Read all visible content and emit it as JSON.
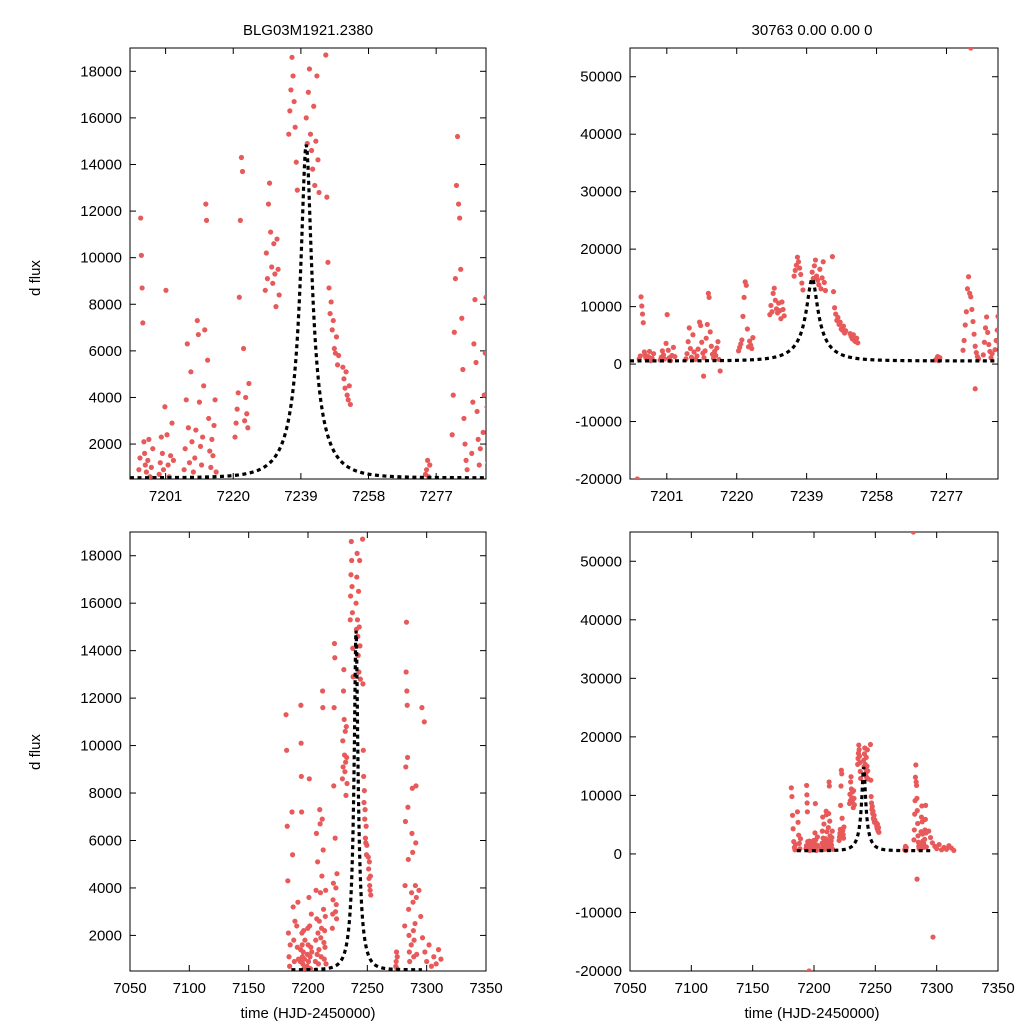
{
  "figure": {
    "title_left": "BLG03M1921.2380",
    "title_right": "30763  0.00  0.00  0",
    "ylabel": "d flux",
    "xlabel": "time (HJD-2450000)",
    "point_color": "#e8595a",
    "curve_color": "#000000"
  },
  "model": {
    "t0": 7240.5,
    "tE": 8.5,
    "amplitude": 14300,
    "baseline": 550
  },
  "chart_data": [
    {
      "type": "scatter",
      "panel": "top-left",
      "title": "BLG03M1921.2380",
      "xlabel": "",
      "ylabel": "d flux",
      "xlim": [
        7191,
        7291
      ],
      "ylim": [
        500,
        19000
      ],
      "xticks": [
        7201,
        7220,
        7239,
        7258,
        7277
      ],
      "yticks": [
        2000,
        4000,
        6000,
        8000,
        10000,
        12000,
        14000,
        16000,
        18000
      ],
      "series": [
        {
          "name": "observations",
          "kind": "points"
        },
        {
          "name": "model",
          "kind": "dashed-line"
        }
      ]
    },
    {
      "type": "scatter",
      "panel": "top-right",
      "title": "30763  0.00  0.00  0",
      "xlabel": "",
      "ylabel": "",
      "xlim": [
        7191,
        7291
      ],
      "ylim": [
        -20000,
        55000
      ],
      "xticks": [
        7201,
        7220,
        7239,
        7258,
        7277
      ],
      "yticks": [
        -20000,
        -10000,
        0,
        10000,
        20000,
        30000,
        40000,
        50000
      ],
      "series": [
        {
          "name": "observations",
          "kind": "points"
        },
        {
          "name": "model",
          "kind": "dashed-line"
        }
      ]
    },
    {
      "type": "scatter",
      "panel": "bottom-left",
      "title": "",
      "xlabel": "time (HJD-2450000)",
      "ylabel": "d flux",
      "xlim": [
        7050,
        7350
      ],
      "ylim": [
        500,
        19000
      ],
      "xticks": [
        7050,
        7100,
        7150,
        7200,
        7250,
        7300,
        7350
      ],
      "yticks": [
        2000,
        4000,
        6000,
        8000,
        10000,
        12000,
        14000,
        16000,
        18000
      ],
      "series": [
        {
          "name": "observations",
          "kind": "points"
        },
        {
          "name": "model",
          "kind": "dashed-line"
        }
      ]
    },
    {
      "type": "scatter",
      "panel": "bottom-right",
      "title": "",
      "xlabel": "time (HJD-2450000)",
      "ylabel": "",
      "xlim": [
        7050,
        7350
      ],
      "ylim": [
        -20000,
        55000
      ],
      "xticks": [
        7050,
        7100,
        7150,
        7200,
        7250,
        7300,
        7350
      ],
      "yticks": [
        -20000,
        -10000,
        0,
        10000,
        20000,
        30000,
        40000,
        50000
      ],
      "series": [
        {
          "name": "observations",
          "kind": "points"
        },
        {
          "name": "model",
          "kind": "dashed-line"
        }
      ]
    }
  ],
  "observations": [
    [
      7193.5,
      900
    ],
    [
      7193.8,
      1400
    ],
    [
      7194.0,
      11700
    ],
    [
      7194.2,
      10100
    ],
    [
      7194.4,
      8700
    ],
    [
      7194.6,
      7200
    ],
    [
      7194.9,
      2100
    ],
    [
      7195.1,
      1600
    ],
    [
      7195.3,
      1100
    ],
    [
      7195.6,
      800
    ],
    [
      7196.0,
      1300
    ],
    [
      7196.3,
      2200
    ],
    [
      7196.6,
      600
    ],
    [
      7197.0,
      1000
    ],
    [
      7197.4,
      1800
    ],
    [
      7199.2,
      700
    ],
    [
      7199.5,
      1200
    ],
    [
      7199.8,
      2300
    ],
    [
      7200.1,
      1600
    ],
    [
      7200.4,
      900
    ],
    [
      7200.8,
      3600
    ],
    [
      7201.1,
      8600
    ],
    [
      7201.4,
      2400
    ],
    [
      7201.7,
      1100
    ],
    [
      7202.0,
      600
    ],
    [
      7202.4,
      1500
    ],
    [
      7202.8,
      2900
    ],
    [
      7203.2,
      1300
    ],
    [
      7206.2,
      900
    ],
    [
      7206.5,
      1800
    ],
    [
      7206.8,
      3900
    ],
    [
      7207.1,
      6300
    ],
    [
      7207.4,
      2700
    ],
    [
      7207.7,
      1200
    ],
    [
      7208.1,
      5100
    ],
    [
      7208.4,
      2100
    ],
    [
      7208.8,
      800
    ],
    [
      7209.2,
      1400
    ],
    [
      7209.5,
      2600
    ],
    [
      7209.9,
      7300
    ],
    [
      7210.2,
      6700
    ],
    [
      7210.5,
      3800
    ],
    [
      7210.8,
      1900
    ],
    [
      7211.1,
      1100
    ],
    [
      7211.4,
      2300
    ],
    [
      7211.7,
      4500
    ],
    [
      7212.0,
      6900
    ],
    [
      7212.3,
      12300
    ],
    [
      7212.5,
      11600
    ],
    [
      7212.8,
      5600
    ],
    [
      7213.1,
      3100
    ],
    [
      7213.4,
      1700
    ],
    [
      7213.7,
      1000
    ],
    [
      7214.0,
      2200
    ],
    [
      7214.3,
      1500
    ],
    [
      7214.6,
      2800
    ],
    [
      7214.9,
      3900
    ],
    [
      7215.2,
      800
    ],
    [
      7220.5,
      2300
    ],
    [
      7220.8,
      2900
    ],
    [
      7221.1,
      3500
    ],
    [
      7221.4,
      4200
    ],
    [
      7221.7,
      8300
    ],
    [
      7222.0,
      11600
    ],
    [
      7222.3,
      14300
    ],
    [
      7222.6,
      13700
    ],
    [
      7222.9,
      6100
    ],
    [
      7223.2,
      3000
    ],
    [
      7223.5,
      4000
    ],
    [
      7223.8,
      3300
    ],
    [
      7224.1,
      2700
    ],
    [
      7224.4,
      4600
    ],
    [
      7229.0,
      8600
    ],
    [
      7229.3,
      10200
    ],
    [
      7229.6,
      9100
    ],
    [
      7229.9,
      12300
    ],
    [
      7230.2,
      13200
    ],
    [
      7230.5,
      11100
    ],
    [
      7230.8,
      9600
    ],
    [
      7231.1,
      8900
    ],
    [
      7231.4,
      10600
    ],
    [
      7231.7,
      9300
    ],
    [
      7232.0,
      7900
    ],
    [
      7232.3,
      10800
    ],
    [
      7232.6,
      9500
    ],
    [
      7232.9,
      8400
    ],
    [
      7235.6,
      15300
    ],
    [
      7235.9,
      16300
    ],
    [
      7236.2,
      17200
    ],
    [
      7236.5,
      18600
    ],
    [
      7236.8,
      17800
    ],
    [
      7237.1,
      16700
    ],
    [
      7237.4,
      15600
    ],
    [
      7237.7,
      14100
    ],
    [
      7238.0,
      12900
    ],
    [
      7240.5,
      16000
    ],
    [
      7240.8,
      14900
    ],
    [
      7241.1,
      17100
    ],
    [
      7241.4,
      18100
    ],
    [
      7241.7,
      15300
    ],
    [
      7242.0,
      14600
    ],
    [
      7242.3,
      13800
    ],
    [
      7242.6,
      16500
    ],
    [
      7242.9,
      13100
    ],
    [
      7243.2,
      15000
    ],
    [
      7243.5,
      17800
    ],
    [
      7243.8,
      14200
    ],
    [
      7244.1,
      12800
    ],
    [
      7246.0,
      18700
    ],
    [
      7246.3,
      12600
    ],
    [
      7246.6,
      9800
    ],
    [
      7246.9,
      8700
    ],
    [
      7247.2,
      7600
    ],
    [
      7247.5,
      8100
    ],
    [
      7247.8,
      6900
    ],
    [
      7248.1,
      7300
    ],
    [
      7248.4,
      6100
    ],
    [
      7248.7,
      5900
    ],
    [
      7249.0,
      6600
    ],
    [
      7249.3,
      5400
    ],
    [
      7249.6,
      5800
    ],
    [
      7250.8,
      5300
    ],
    [
      7251.1,
      4800
    ],
    [
      7251.4,
      4400
    ],
    [
      7251.7,
      5100
    ],
    [
      7252.0,
      4100
    ],
    [
      7252.3,
      3900
    ],
    [
      7252.6,
      4500
    ],
    [
      7252.9,
      3700
    ],
    [
      7274.0,
      700
    ],
    [
      7274.3,
      900
    ],
    [
      7274.6,
      1300
    ],
    [
      7274.9,
      600
    ],
    [
      7275.2,
      1100
    ],
    [
      7281.5,
      2400
    ],
    [
      7281.8,
      4100
    ],
    [
      7282.1,
      6800
    ],
    [
      7282.4,
      9100
    ],
    [
      7282.7,
      13100
    ],
    [
      7283.0,
      15200
    ],
    [
      7283.3,
      12300
    ],
    [
      7283.6,
      11700
    ],
    [
      7283.9,
      9500
    ],
    [
      7284.2,
      7400
    ],
    [
      7284.5,
      5200
    ],
    [
      7284.8,
      3100
    ],
    [
      7285.1,
      2000
    ],
    [
      7285.4,
      1300
    ],
    [
      7285.7,
      900
    ],
    [
      7287.0,
      1600
    ],
    [
      7287.3,
      3800
    ],
    [
      7287.6,
      6300
    ],
    [
      7287.9,
      8200
    ],
    [
      7288.2,
      5500
    ],
    [
      7288.5,
      3400
    ],
    [
      7288.8,
      2200
    ],
    [
      7289.1,
      1100
    ],
    [
      7289.4,
      1800
    ],
    [
      7290.2,
      2500
    ],
    [
      7290.5,
      4100
    ],
    [
      7290.8,
      5900
    ],
    [
      7291.0,
      8300
    ],
    [
      7291.3,
      3600
    ],
    [
      7291.6,
      1200
    ]
  ],
  "bottom_left_extra": [
    [
      7181.5,
      11300
    ],
    [
      7182.0,
      9800
    ],
    [
      7182.5,
      6600
    ],
    [
      7183.0,
      4300
    ],
    [
      7183.5,
      2100
    ],
    [
      7184.0,
      1100
    ],
    [
      7184.5,
      700
    ],
    [
      7185.0,
      1600
    ],
    [
      7186.5,
      7200
    ],
    [
      7187.0,
      5400
    ],
    [
      7187.5,
      3200
    ],
    [
      7188.0,
      1800
    ],
    [
      7188.5,
      900
    ],
    [
      7189.0,
      2600
    ],
    [
      7190.5,
      2400
    ],
    [
      7191.0,
      1500
    ],
    [
      7191.5,
      3400
    ],
    [
      7192.0,
      1000
    ],
    [
      7296.0,
      11600
    ],
    [
      7298.0,
      11000
    ],
    [
      7293.5,
      3900
    ],
    [
      7295.0,
      2800
    ],
    [
      7296.5,
      1900
    ],
    [
      7298.5,
      1300
    ],
    [
      7300.0,
      900
    ],
    [
      7302.0,
      1600
    ],
    [
      7304.0,
      700
    ],
    [
      7306.0,
      1100
    ],
    [
      7308.0,
      800
    ],
    [
      7310.0,
      1400
    ],
    [
      7312.0,
      1000
    ]
  ],
  "bottom_right_extra": [
    [
      7181.5,
      11300
    ],
    [
      7182.0,
      9800
    ],
    [
      7182.5,
      6600
    ],
    [
      7183.0,
      4300
    ],
    [
      7183.5,
      2100
    ],
    [
      7184.0,
      1100
    ],
    [
      7184.5,
      700
    ],
    [
      7185.0,
      1600
    ],
    [
      7186.5,
      7200
    ],
    [
      7187.0,
      5400
    ],
    [
      7187.5,
      3200
    ],
    [
      7188.0,
      1800
    ],
    [
      7188.5,
      900
    ],
    [
      7189.0,
      2600
    ],
    [
      7196.0,
      -20000
    ],
    [
      7281.0,
      55000
    ],
    [
      7284.0,
      -4300
    ],
    [
      7297.0,
      -14200
    ],
    [
      7293.5,
      3900
    ],
    [
      7295.0,
      2800
    ],
    [
      7296.5,
      1900
    ],
    [
      7298.5,
      1300
    ],
    [
      7300.0,
      900
    ],
    [
      7302.0,
      1600
    ],
    [
      7304.0,
      700
    ],
    [
      7306.0,
      1100
    ],
    [
      7308.0,
      800
    ],
    [
      7310.0,
      1400
    ],
    [
      7312.0,
      1000
    ],
    [
      7314.0,
      600
    ]
  ],
  "top_right_extra": [
    [
      7193.0,
      -20000
    ],
    [
      7283.6,
      55000
    ],
    [
      7284.8,
      -4300
    ],
    [
      7211.0,
      -2100
    ],
    [
      7215.5,
      -1200
    ]
  ]
}
